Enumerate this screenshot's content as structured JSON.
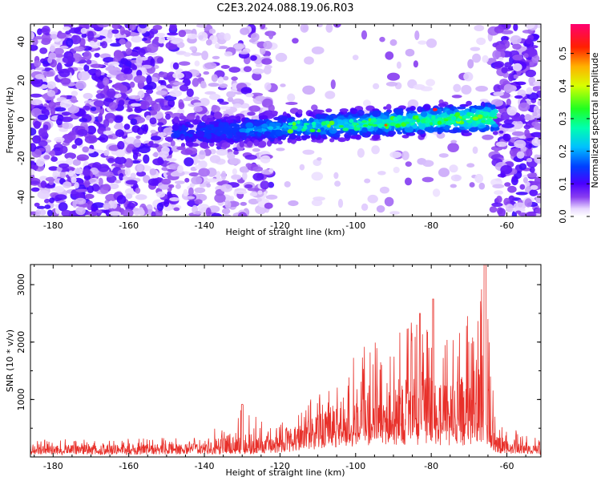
{
  "title": "C2E3.2024.088.19.06.R03",
  "colors": {
    "snr_line": "#e8302a",
    "scatter_dominant": "#6a0fe0",
    "axis": "#000000"
  },
  "colorbar": {
    "label": "Normalized spectral amplitude",
    "ticks": [
      0.0,
      0.1,
      0.2,
      0.3,
      0.4,
      0.5
    ],
    "tick_labels": [
      "0.0",
      "0.1",
      "0.2",
      "0.3",
      "0.4",
      "0.5"
    ],
    "range": [
      0.0,
      0.59
    ],
    "colormap": "rainbow-violet-to-magenta"
  },
  "chart_data": [
    {
      "type": "heatmap",
      "name": "spectrogram",
      "xlabel": "Height of straight line (km)",
      "ylabel": "Frequency (Hz)",
      "xlim": [
        -186,
        -51
      ],
      "ylim": [
        -50,
        49
      ],
      "xticks": [
        -180,
        -160,
        -140,
        -120,
        -100,
        -80,
        -60
      ],
      "xtick_labels": [
        "-180",
        "-160",
        "-140",
        "-120",
        "-100",
        "-80",
        "-60"
      ],
      "yticks": [
        -40,
        -20,
        0,
        20,
        40
      ],
      "ytick_labels": [
        "-40",
        "-20",
        "0",
        "20",
        "40"
      ],
      "regions": [
        {
          "desc": "broadband noise",
          "x": [
            -186,
            -148
          ],
          "y": [
            -50,
            49
          ],
          "level": 0.08
        },
        {
          "desc": "sparse noise",
          "x": [
            -148,
            -122
          ],
          "y": [
            -50,
            49
          ],
          "level": 0.04
        },
        {
          "desc": "echo band",
          "x": [
            -148,
            -63
          ],
          "y_center": [
            -8,
            2
          ],
          "halfwidth": 7,
          "level_range": [
            0.05,
            0.59
          ]
        },
        {
          "desc": "broadband noise",
          "x": [
            -63,
            -51
          ],
          "y": [
            -50,
            49
          ],
          "level": 0.08
        }
      ],
      "peak": {
        "x": -79,
        "y": 5,
        "value": 0.55
      }
    },
    {
      "type": "line",
      "name": "snr",
      "xlabel": "Height of straight line (km)",
      "ylabel": "SNR (10 * v/v)",
      "xlim": [
        -186,
        -51
      ],
      "ylim": [
        0,
        3350
      ],
      "xticks": [
        -180,
        -160,
        -140,
        -120,
        -100,
        -80,
        -60
      ],
      "xtick_labels": [
        "-180",
        "-160",
        "-140",
        "-120",
        "-100",
        "-80",
        "-60"
      ],
      "yticks": [
        1000,
        2000,
        3000
      ],
      "ytick_labels": [
        "1000",
        "2000",
        "3000"
      ],
      "series_envelope": [
        {
          "x": -186,
          "baseline": 120,
          "peak": 300
        },
        {
          "x": -140,
          "baseline": 150,
          "peak": 350
        },
        {
          "x": -130,
          "baseline": 150,
          "peak": 920
        },
        {
          "x": -122,
          "baseline": 200,
          "peak": 500
        },
        {
          "x": -110,
          "baseline": 450,
          "peak": 1100
        },
        {
          "x": -100,
          "baseline": 600,
          "peak": 1900
        },
        {
          "x": -90,
          "baseline": 700,
          "peak": 2250
        },
        {
          "x": -83,
          "baseline": 700,
          "peak": 2500
        },
        {
          "x": -75,
          "baseline": 650,
          "peak": 2000
        },
        {
          "x": -70,
          "baseline": 650,
          "peak": 2500
        },
        {
          "x": -66,
          "baseline": 900,
          "peak": 3350
        },
        {
          "x": -63,
          "baseline": 200,
          "peak": 600
        },
        {
          "x": -51,
          "baseline": 120,
          "peak": 300
        }
      ]
    }
  ]
}
